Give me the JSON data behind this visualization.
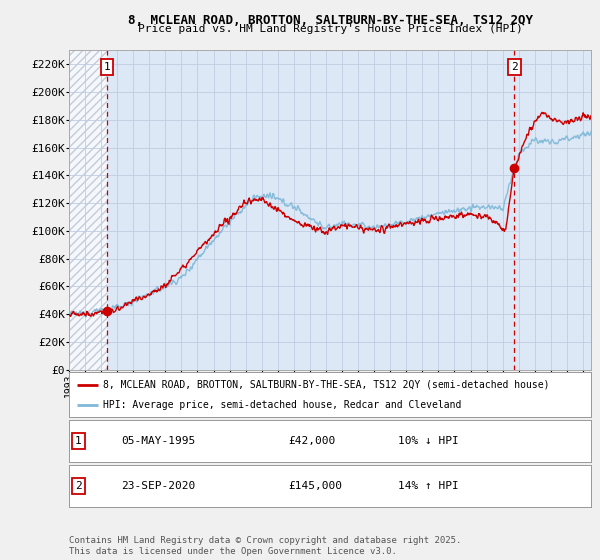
{
  "title1": "8, MCLEAN ROAD, BROTTON, SALTBURN-BY-THE-SEA, TS12 2QY",
  "title2": "Price paid vs. HM Land Registry's House Price Index (HPI)",
  "ylim": [
    0,
    230000
  ],
  "yticks": [
    0,
    20000,
    40000,
    60000,
    80000,
    100000,
    120000,
    140000,
    160000,
    180000,
    200000,
    220000
  ],
  "ytick_labels": [
    "£0",
    "£20K",
    "£40K",
    "£60K",
    "£80K",
    "£100K",
    "£120K",
    "£140K",
    "£160K",
    "£180K",
    "£200K",
    "£220K"
  ],
  "legend_line1": "8, MCLEAN ROAD, BROTTON, SALTBURN-BY-THE-SEA, TS12 2QY (semi-detached house)",
  "legend_line2": "HPI: Average price, semi-detached house, Redcar and Cleveland",
  "sale1_date": "05-MAY-1995",
  "sale1_price": "£42,000",
  "sale1_hpi": "10% ↓ HPI",
  "sale2_date": "23-SEP-2020",
  "sale2_price": "£145,000",
  "sale2_hpi": "14% ↑ HPI",
  "sale1_marker_date": 1995.35,
  "sale1_marker_value": 42000,
  "sale2_marker_date": 2020.73,
  "sale2_marker_value": 145000,
  "vline1_date": 1995.35,
  "vline2_date": 2020.73,
  "footnote": "Contains HM Land Registry data © Crown copyright and database right 2025.\nThis data is licensed under the Open Government Licence v3.0.",
  "hpi_color": "#7fb8d8",
  "sale_color": "#cc0000",
  "background_color": "#f0f0f0",
  "plot_bg_color": "#dce8f5"
}
